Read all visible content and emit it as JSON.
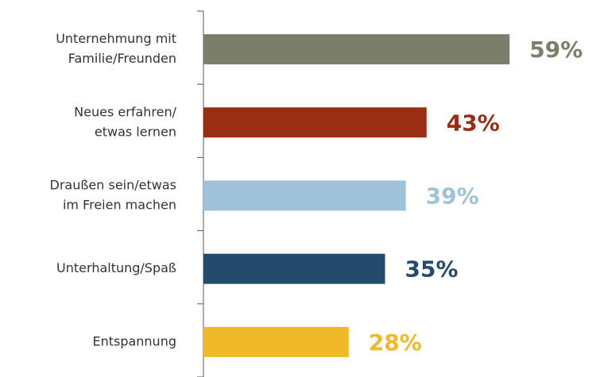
{
  "chart_data": {
    "type": "bar",
    "orientation": "horizontal",
    "categories": [
      [
        "Unternehmung mit",
        "Familie/Freunden"
      ],
      [
        "Neues erfahren/",
        "etwas lernen"
      ],
      [
        "Draußen sein/etwas",
        "im Freien machen"
      ],
      [
        "Unterhaltung/Spaß"
      ],
      [
        "Entspannung"
      ]
    ],
    "values": [
      59,
      43,
      39,
      35,
      28
    ],
    "value_labels": [
      "59%",
      "43%",
      "39%",
      "35%",
      "28%"
    ],
    "colors": [
      "#7b7e6b",
      "#992e14",
      "#9fc1da",
      "#244b6c",
      "#f0b92a"
    ]
  }
}
